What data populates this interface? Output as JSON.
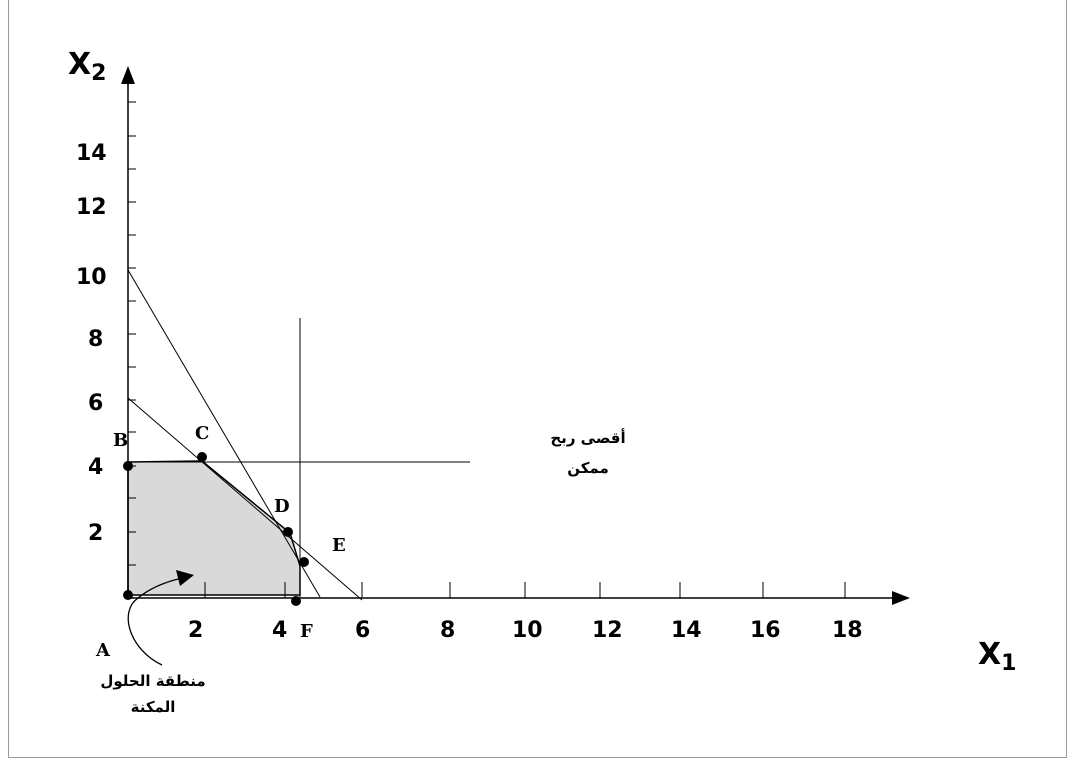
{
  "axes": {
    "x_title": "X",
    "x_sub": "1",
    "y_title": "X",
    "y_sub": "2",
    "x_ticks": [
      "2",
      "4",
      "6",
      "8",
      "10",
      "12",
      "14",
      "16",
      "18"
    ],
    "y_ticks": [
      "2",
      "4",
      "6",
      "8",
      "10",
      "12",
      "14"
    ]
  },
  "points": {
    "A": "A",
    "B": "B",
    "C": "C",
    "D": "D",
    "E": "E",
    "F": "F"
  },
  "annotations": {
    "max_profit_line1": "أقصى ربح",
    "max_profit_line2": "ممكن",
    "feasible_line1": "منطقة الحلول",
    "feasible_line2": "المكنة"
  },
  "colors": {
    "feasible_fill": "#d9d9d9",
    "line": "#000000",
    "frame": "#9a9a9a"
  }
}
